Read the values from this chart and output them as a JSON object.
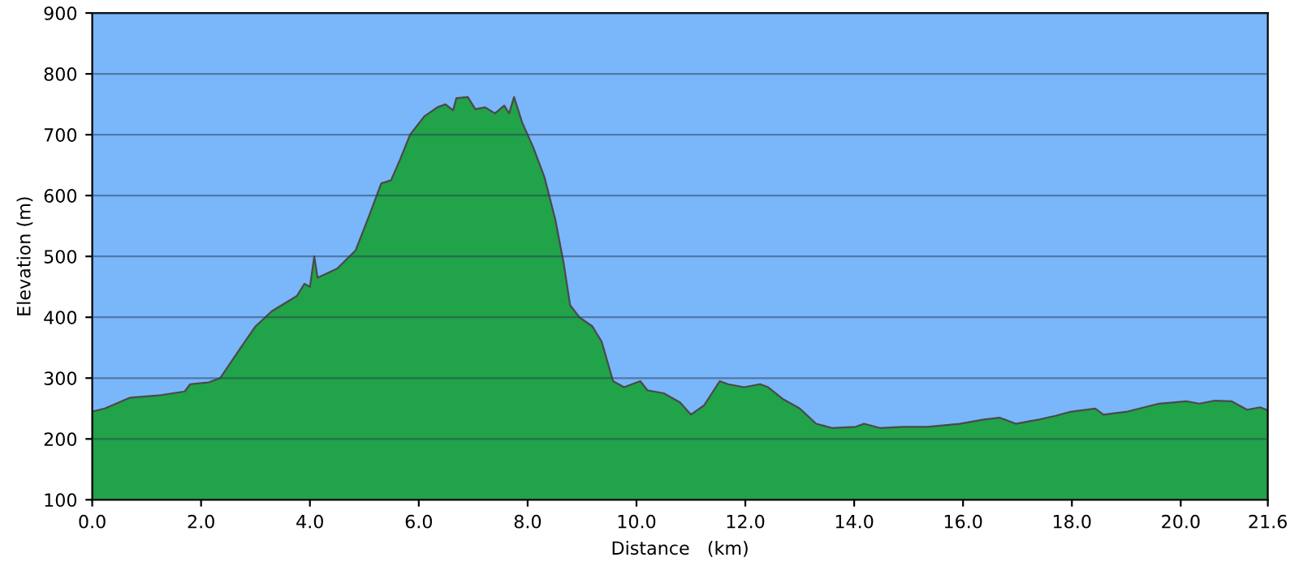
{
  "chart_data": {
    "type": "area",
    "xlabel": "Distance   (km)",
    "ylabel": "Elevation (m)",
    "x": [
      0,
      0.23,
      0.7,
      1.26,
      1.7,
      1.8,
      2.14,
      2.35,
      2.73,
      3.0,
      3.3,
      3.76,
      3.9,
      4.0,
      4.08,
      4.14,
      4.5,
      4.84,
      5.08,
      5.31,
      5.49,
      5.66,
      5.84,
      6.1,
      6.34,
      6.49,
      6.63,
      6.69,
      6.9,
      7.04,
      7.22,
      7.4,
      7.57,
      7.66,
      7.75,
      7.9,
      8.1,
      8.31,
      8.51,
      8.66,
      8.78,
      8.95,
      9.19,
      9.36,
      9.57,
      9.77,
      10.07,
      10.2,
      10.5,
      10.8,
      11.0,
      11.24,
      11.53,
      11.68,
      11.98,
      12.27,
      12.42,
      12.7,
      13.0,
      13.3,
      13.59,
      14.03,
      14.18,
      14.47,
      14.9,
      15.35,
      15.94,
      16.38,
      16.67,
      16.97,
      17.4,
      17.7,
      17.99,
      18.43,
      18.58,
      19.02,
      19.6,
      20.1,
      20.34,
      20.63,
      20.93,
      21.22,
      21.46,
      21.6
    ],
    "series": [
      {
        "color": "#21a349",
        "values": [
          245,
          250,
          268,
          272,
          278,
          290,
          293,
          300,
          350,
          385,
          410,
          435,
          455,
          450,
          500,
          465,
          480,
          510,
          565,
          620,
          625,
          660,
          700,
          730,
          745,
          750,
          740,
          760,
          762,
          742,
          745,
          735,
          748,
          735,
          762,
          720,
          680,
          630,
          560,
          490,
          420,
          400,
          385,
          360,
          295,
          285,
          295,
          280,
          275,
          260,
          240,
          255,
          295,
          290,
          285,
          290,
          285,
          265,
          250,
          225,
          218,
          220,
          225,
          218,
          220,
          220,
          225,
          232,
          235,
          225,
          232,
          238,
          245,
          250,
          240,
          245,
          258,
          262,
          258,
          263,
          262,
          248,
          252,
          247
        ]
      }
    ],
    "xlim": [
      0,
      21.6
    ],
    "ylim": [
      100,
      900
    ],
    "xticks": [
      {
        "value": 0,
        "label": "0.0"
      },
      {
        "value": 2,
        "label": "2.0"
      },
      {
        "value": 4,
        "label": "4.0"
      },
      {
        "value": 6,
        "label": "6.0"
      },
      {
        "value": 8,
        "label": "8.0"
      },
      {
        "value": 10,
        "label": "10.0"
      },
      {
        "value": 12,
        "label": "12.0"
      },
      {
        "value": 14,
        "label": "14.0"
      },
      {
        "value": 16,
        "label": "16.0"
      },
      {
        "value": 18,
        "label": "18.0"
      },
      {
        "value": 20,
        "label": "20.0"
      },
      21.6
    ],
    "yticks": [
      100,
      200,
      300,
      400,
      500,
      600,
      700,
      800,
      900
    ],
    "grid": "y"
  }
}
